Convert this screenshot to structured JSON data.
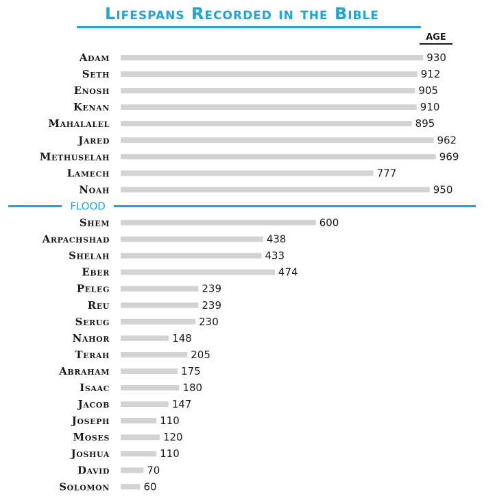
{
  "chart_data": {
    "type": "bar",
    "orientation": "horizontal",
    "title": "Lifespans Recorded in the Bible",
    "value_header": "AGE",
    "divider_label": "FLOOD",
    "divider_after_category": "Noah",
    "categories": [
      "Adam",
      "Seth",
      "Enosh",
      "Kenan",
      "Mahalalel",
      "Jared",
      "Methuselah",
      "Lamech",
      "Noah",
      "Shem",
      "Arpachshad",
      "Shelah",
      "Eber",
      "Peleg",
      "Reu",
      "Serug",
      "Nahor",
      "Terah",
      "Abraham",
      "Isaac",
      "Jacob",
      "Joseph",
      "Moses",
      "Joshua",
      "David",
      "Solomon"
    ],
    "values": [
      930,
      912,
      905,
      910,
      895,
      962,
      969,
      777,
      950,
      600,
      438,
      433,
      474,
      239,
      239,
      230,
      148,
      205,
      175,
      180,
      147,
      110,
      120,
      110,
      70,
      60
    ],
    "bar_color": "#d3d3d3",
    "accent_color": "#1ba7dc",
    "grid": false
  }
}
